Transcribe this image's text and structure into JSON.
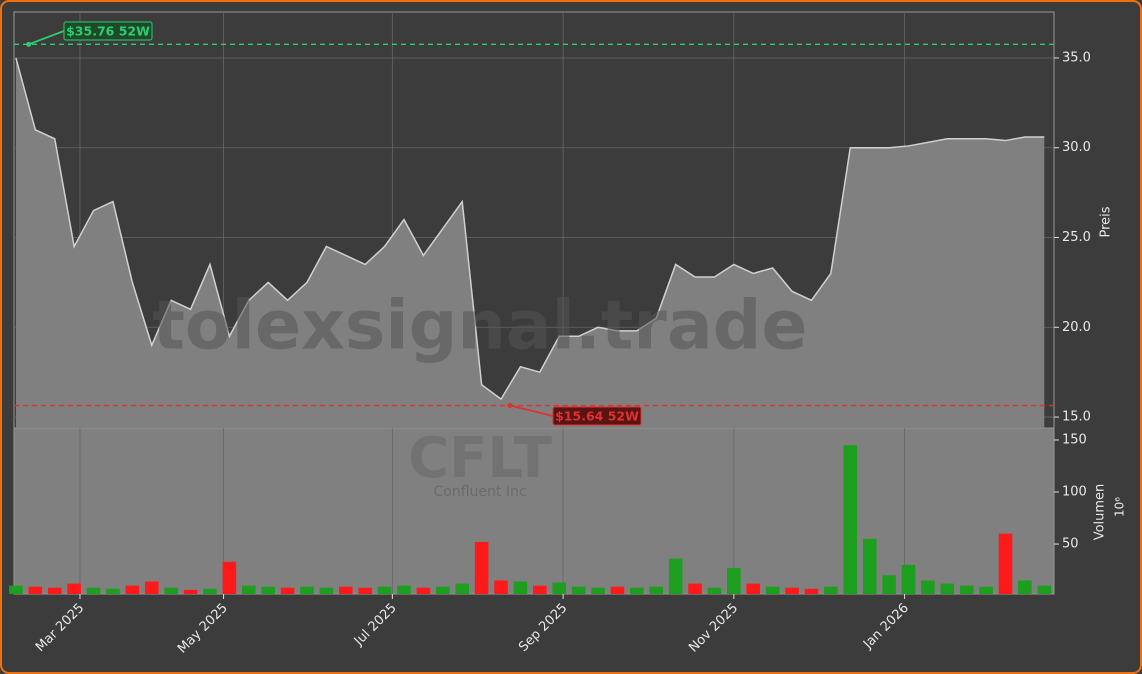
{
  "chart_data": {
    "type": "price_volume",
    "watermark": "tolexsignal.trade",
    "symbol": "CFLT",
    "company": "Confluent Inc",
    "y_label": "Preis",
    "y2_label": "Volumen",
    "y2_unit": "10⁶",
    "series": [
      {
        "name": "Preis",
        "color": "#d0d0d0",
        "fill": "#808080",
        "values": [
          35.0,
          31.0,
          30.5,
          24.5,
          26.5,
          27.0,
          22.5,
          19.0,
          21.5,
          21.0,
          23.5,
          19.5,
          21.5,
          22.5,
          21.5,
          22.5,
          24.5,
          24.0,
          23.5,
          24.5,
          26.0,
          24.0,
          25.5,
          27.0,
          16.8,
          16.0,
          17.8,
          17.5,
          19.5,
          19.5,
          20.0,
          19.8,
          19.8,
          20.5,
          23.5,
          22.8,
          22.8,
          23.5,
          23.0,
          23.3,
          22.0,
          21.5,
          23.0,
          30.0,
          30.0,
          30.0,
          30.1,
          30.3,
          30.5,
          30.5,
          30.5,
          30.4,
          30.6,
          30.6
        ]
      },
      {
        "name": "Volumen",
        "axis": "y2",
        "up_color": "#1e9e1e",
        "down_color": "#ff1a1a",
        "values": [
          10,
          9,
          8,
          12,
          8,
          7,
          10,
          14,
          8,
          6,
          7,
          33,
          10,
          9,
          8,
          9,
          8,
          9,
          8,
          9,
          10,
          8,
          9,
          12,
          52,
          15,
          14,
          10,
          13,
          9,
          8,
          9,
          8,
          9,
          36,
          12,
          8,
          27,
          12,
          9,
          8,
          7,
          9,
          145,
          55,
          20,
          30,
          15,
          12,
          10,
          9,
          60,
          15,
          10
        ]
      }
    ],
    "xlim": [
      -0.1,
      53.5
    ],
    "xticks": [
      {
        "value": 3.3,
        "label": "Mar 2025"
      },
      {
        "value": 10.7,
        "label": "May 2025"
      },
      {
        "value": 19.4,
        "label": "Jul 2025"
      },
      {
        "value": 28.2,
        "label": "Sep 2025"
      },
      {
        "value": 37.0,
        "label": "Nov 2025"
      },
      {
        "value": 45.8,
        "label": "Jan 2026"
      }
    ],
    "ylim": [
      14.39,
      37.56
    ],
    "yticks": [
      15.0,
      20.0,
      25.0,
      30.0,
      35.0
    ],
    "y2lim": [
      2,
      161.5
    ],
    "y2ticks": [
      50,
      100,
      150
    ],
    "annotations": [
      {
        "text": "$35.76 52W",
        "value": 35.76,
        "index": 0.4,
        "color": "#2ecc71"
      },
      {
        "text": "$15.64 52W",
        "value": 15.64,
        "index": 25.2,
        "color": "#e03030"
      }
    ],
    "grid": true
  }
}
